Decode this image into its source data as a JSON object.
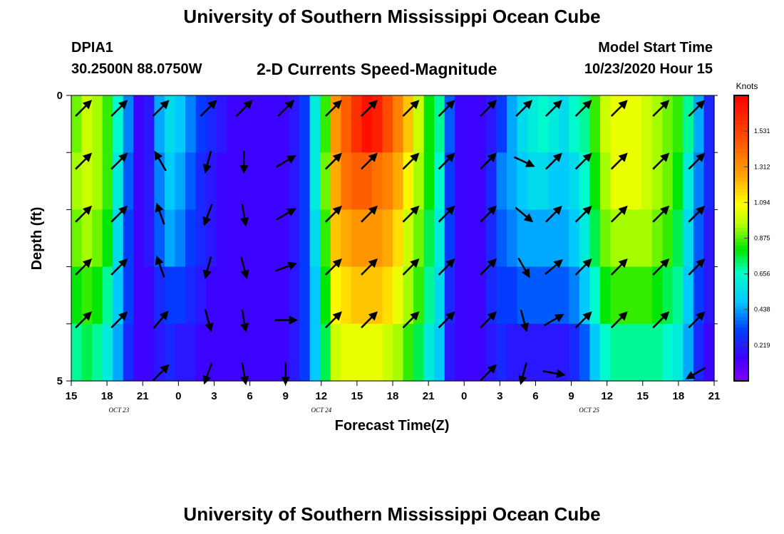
{
  "header": {
    "title": "University of Southern Mississippi Ocean Cube",
    "station_id": "DPIA1",
    "station_coords": "30.2500N 88.0750W",
    "chart_title": "2-D Currents Speed-Magnitude",
    "model_start_label": "Model Start Time",
    "model_start_value": "10/23/2020 Hour 15"
  },
  "footer": {
    "title": "University of Southern Mississippi Ocean Cube"
  },
  "chart_data": {
    "type": "heatmap",
    "title": "2-D Currents Speed-Magnitude",
    "xlabel": "Forecast Time(Z)",
    "ylabel": "Depth (ft)",
    "x_tick_labels": [
      "15",
      "18",
      "21",
      "0",
      "3",
      "6",
      "9",
      "12",
      "15",
      "18",
      "21",
      "0",
      "3",
      "6",
      "9",
      "12",
      "15",
      "18",
      "21"
    ],
    "x_hours": [
      0,
      54
    ],
    "date_labels": [
      {
        "text": "OCT  23",
        "hour": 4
      },
      {
        "text": "OCT  24",
        "hour": 21
      },
      {
        "text": "OCT  25",
        "hour": 43.5
      }
    ],
    "ylim": [
      0,
      5
    ],
    "y_tick_labels": [
      {
        "value": 0,
        "label": "0"
      },
      {
        "value": 5,
        "label": "5"
      }
    ],
    "y_tick_values": [
      0,
      1,
      2,
      3,
      4,
      5
    ],
    "colorbar": {
      "unit": "Knots",
      "min": 0,
      "max": 1.75,
      "tick_values": [
        1.531,
        1.312,
        1.094,
        0.875,
        0.656,
        0.438,
        0.219
      ],
      "tick_labels": [
        "1.531",
        "1.312",
        "1.094",
        "0.875",
        "0.656",
        "0.438",
        "0.219"
      ]
    },
    "depth_layers": [
      "0-1 ft",
      "1-2 ft",
      "2-3 ft",
      "3-4 ft",
      "4-5 ft"
    ],
    "time_hours_per_column": 1,
    "speed_knots": [
      [
        0.9,
        1.0,
        0.95,
        0.85,
        0.65,
        0.4,
        0.15,
        0.2,
        0.45,
        0.55,
        0.5,
        0.4,
        0.3,
        0.25,
        0.2,
        0.15,
        0.15,
        0.15,
        0.15,
        0.15,
        0.15,
        0.2,
        0.3,
        0.6,
        0.85,
        1.3,
        1.45,
        1.6,
        1.7,
        1.65,
        1.5,
        1.35,
        1.2,
        1.0,
        0.8,
        0.7,
        0.35,
        0.15,
        0.15,
        0.15,
        0.2,
        0.3,
        0.45,
        0.55,
        0.6,
        0.65,
        0.6,
        0.55,
        0.65,
        0.7,
        0.85,
        1.0,
        1.05,
        1.05,
        1.05,
        1.0,
        0.95,
        0.9,
        0.85,
        0.7,
        0.45,
        0.25
      ],
      [
        0.95,
        1.0,
        0.95,
        0.85,
        0.6,
        0.35,
        0.15,
        0.2,
        0.4,
        0.5,
        0.45,
        0.35,
        0.25,
        0.2,
        0.15,
        0.15,
        0.15,
        0.15,
        0.15,
        0.15,
        0.15,
        0.2,
        0.3,
        0.6,
        0.9,
        1.25,
        1.4,
        1.45,
        1.45,
        1.4,
        1.35,
        1.25,
        1.1,
        0.95,
        0.8,
        0.65,
        0.3,
        0.15,
        0.15,
        0.15,
        0.25,
        0.4,
        0.45,
        0.5,
        0.55,
        0.55,
        0.5,
        0.5,
        0.55,
        0.65,
        0.8,
        0.95,
        1.05,
        1.05,
        1.05,
        1.0,
        0.95,
        0.9,
        0.8,
        0.6,
        0.4,
        0.25
      ],
      [
        0.9,
        0.95,
        0.9,
        0.8,
        0.55,
        0.3,
        0.15,
        0.2,
        0.35,
        0.45,
        0.4,
        0.3,
        0.25,
        0.2,
        0.15,
        0.15,
        0.15,
        0.15,
        0.15,
        0.15,
        0.15,
        0.2,
        0.3,
        0.55,
        0.85,
        1.2,
        1.25,
        1.3,
        1.3,
        1.3,
        1.25,
        1.15,
        1.0,
        0.9,
        0.75,
        0.6,
        0.3,
        0.15,
        0.15,
        0.15,
        0.25,
        0.35,
        0.4,
        0.45,
        0.45,
        0.45,
        0.45,
        0.45,
        0.5,
        0.6,
        0.75,
        0.9,
        0.95,
        0.95,
        0.95,
        0.95,
        0.9,
        0.85,
        0.75,
        0.55,
        0.35,
        0.2
      ],
      [
        0.8,
        0.85,
        0.8,
        0.7,
        0.5,
        0.3,
        0.15,
        0.15,
        0.25,
        0.3,
        0.3,
        0.25,
        0.2,
        0.15,
        0.15,
        0.15,
        0.15,
        0.15,
        0.15,
        0.15,
        0.15,
        0.2,
        0.3,
        0.5,
        0.8,
        1.1,
        1.15,
        1.2,
        1.2,
        1.2,
        1.15,
        1.05,
        0.95,
        0.85,
        0.7,
        0.55,
        0.25,
        0.15,
        0.15,
        0.15,
        0.25,
        0.3,
        0.3,
        0.35,
        0.35,
        0.35,
        0.35,
        0.35,
        0.4,
        0.5,
        0.65,
        0.8,
        0.85,
        0.85,
        0.85,
        0.85,
        0.8,
        0.75,
        0.7,
        0.5,
        0.3,
        0.2
      ],
      [
        0.7,
        0.75,
        0.7,
        0.6,
        0.45,
        0.25,
        0.15,
        0.15,
        0.2,
        0.25,
        0.2,
        0.2,
        0.15,
        0.15,
        0.15,
        0.15,
        0.15,
        0.15,
        0.15,
        0.15,
        0.15,
        0.2,
        0.3,
        0.5,
        0.75,
        1.0,
        1.05,
        1.05,
        1.05,
        1.05,
        1.0,
        0.95,
        0.85,
        0.75,
        0.6,
        0.5,
        0.2,
        0.15,
        0.15,
        0.15,
        0.2,
        0.25,
        0.2,
        0.2,
        0.2,
        0.2,
        0.2,
        0.2,
        0.25,
        0.35,
        0.5,
        0.65,
        0.7,
        0.7,
        0.7,
        0.7,
        0.7,
        0.65,
        0.6,
        0.45,
        0.25,
        0.15
      ]
    ],
    "arrow_times_hours": [
      1,
      4,
      7.5,
      11.5,
      14.5,
      18,
      22,
      25,
      28.5,
      31.5,
      35,
      38,
      40.5,
      43,
      46,
      49.5,
      52.5
    ],
    "arrow_dir_deg": [
      [
        135,
        135,
        135,
        135,
        135,
        135,
        135,
        135,
        135,
        135,
        135,
        135,
        135,
        135,
        135,
        135,
        135
      ],
      [
        135,
        135,
        210,
        345,
        0,
        120,
        135,
        135,
        135,
        135,
        135,
        65,
        135,
        135,
        135,
        135,
        135
      ],
      [
        135,
        135,
        200,
        340,
        10,
        120,
        135,
        135,
        135,
        135,
        135,
        50,
        135,
        135,
        135,
        135,
        135
      ],
      [
        135,
        135,
        200,
        345,
        15,
        110,
        135,
        135,
        135,
        135,
        135,
        30,
        130,
        135,
        135,
        135,
        135
      ],
      [
        135,
        135,
        140,
        15,
        10,
        90,
        135,
        135,
        135,
        135,
        135,
        15,
        120,
        135,
        135,
        135,
        135
      ],
      [
        null,
        null,
        135,
        340,
        10,
        0,
        null,
        null,
        null,
        null,
        135,
        345,
        80,
        null,
        null,
        null,
        300
      ]
    ]
  }
}
